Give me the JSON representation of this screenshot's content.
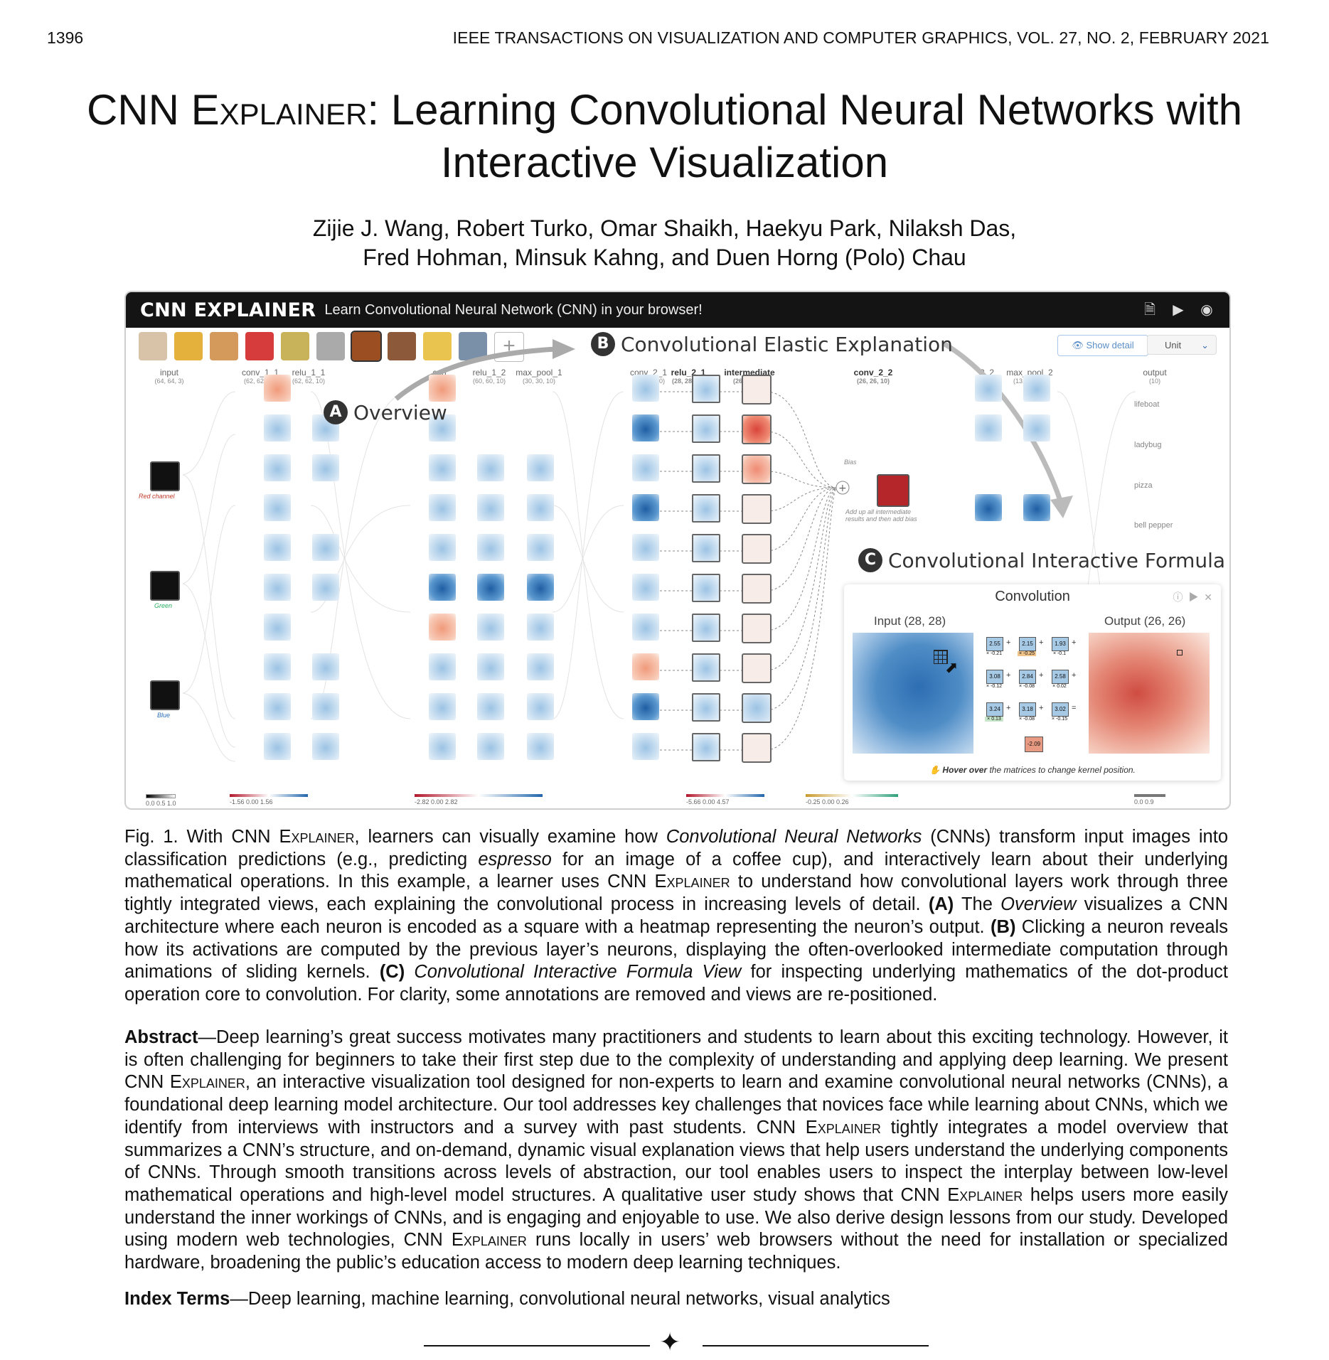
{
  "header": {
    "page_number": "1396",
    "journal": "IEEE TRANSACTIONS ON VISUALIZATION AND COMPUTER GRAPHICS, VOL. 27, NO. 2, FEBRUARY 2021"
  },
  "paper": {
    "title_part1": "CNN ",
    "title_sc": "Explainer",
    "title_part2": ": Learning Convolutional Neural Networks with",
    "title_line2": "Interactive Visualization",
    "authors_line1": "Zijie J. Wang, Robert Turko, Omar Shaikh, Haekyu Park, Nilaksh Das,",
    "authors_line2": "Fred Hohman, Minsuk Kahng, and Duen Horng (Polo) Chau"
  },
  "figure": {
    "app_title": "CNN EXPLAINER",
    "app_subtitle": "Learn Convolutional Neural Network (CNN) in your browser!",
    "add_label": "+",
    "show_detail": "Show detail",
    "unit_label": "Unit",
    "callout_a": {
      "badge": "A",
      "text": "Overview"
    },
    "callout_b": {
      "badge": "B",
      "text": "Convolutional Elastic Explanation"
    },
    "callout_c": {
      "badge": "C",
      "text": "Convolutional Interactive Formula"
    },
    "layers": [
      {
        "name": "input",
        "dims": "(64, 64, 3)"
      },
      {
        "name": "conv_1_1",
        "dims": "(62, 62, 10)"
      },
      {
        "name": "relu_1_1",
        "dims": "(62, 62, 10)"
      },
      {
        "name": "con",
        "dims": "0, 10)"
      },
      {
        "name": "relu_1_2",
        "dims": "(60, 60, 10)"
      },
      {
        "name": "max_pool_1",
        "dims": "(30, 30, 10)"
      },
      {
        "name": "conv_2_1",
        "dims": "(28, 28, 10)"
      },
      {
        "name": "relu_2_1",
        "dims": "(28, 28, 10)"
      },
      {
        "name": "intermediate",
        "dims": "(26, 26, 10)"
      },
      {
        "name": "conv_2_2",
        "dims": "(26, 26, 10)"
      },
      {
        "name": "2_2",
        "dims": "10)"
      },
      {
        "name": "max_pool_2",
        "dims": "(13, 13, 10)"
      },
      {
        "name": "output",
        "dims": "(10)"
      }
    ],
    "channels": [
      "Red channel",
      "Green",
      "Blue"
    ],
    "outputs": [
      "lifeboat",
      "ladybug",
      "pizza",
      "bell pepper"
    ],
    "bias_label": "Bias",
    "bias_note": "Add up all intermediate results and then add bias",
    "formula": {
      "title": "Convolution",
      "input_label": "Input (28, 28)",
      "output_label": "Output (26, 26)",
      "values": [
        "2.55",
        "2.15",
        "1.93",
        "3.08",
        "2.84",
        "2.58",
        "3.24",
        "3.18",
        "3.02"
      ],
      "weights": [
        "× -0.21",
        "× -0.25",
        "× -0.1",
        "× -0.12",
        "× -0.08",
        "× 0.02",
        "× 0.13",
        "× -0.08",
        "× -0.15"
      ],
      "result": "-2.09",
      "hover_bold": "Hover over",
      "hover_rest": " the matrices to change kernel position."
    },
    "legends": [
      {
        "ticks": "0.0  0.5  1.0"
      },
      {
        "ticks": "-1.56        0.00        1.56"
      },
      {
        "ticks": "-2.82                0.00                2.82"
      },
      {
        "ticks": "-5.66          0.00      4.57"
      },
      {
        "ticks": "-0.25          0.00          0.26"
      },
      {
        "ticks": "0.0        0.9"
      }
    ]
  },
  "caption": {
    "lead": "Fig. 1. With CNN ",
    "sc": "Explainer",
    "p1": ", learners can visually examine how ",
    "i1": "Convolutional Neural Networks",
    "p2": " (CNNs) transform input images into classification predictions (e.g., predicting ",
    "i2": "espresso",
    "p3": " for an image of a coffee cup), and interactively learn about their underlying mathematical operations. In this example, a learner uses CNN ",
    "sc2": "Explainer",
    "p4": " to understand how convolutional layers work through three tightly integrated views, each explaining the convolutional process in increasing levels of detail. ",
    "b1": "(A)",
    "p5": " The ",
    "i3": "Overview",
    "p6": " visualizes a CNN architecture where each neuron is encoded as a square with a heatmap representing the neuron’s output. ",
    "b2": "(B)",
    "p7": " Clicking a neuron reveals how its activations are computed by the previous layer’s neurons, displaying the often-overlooked intermediate computation through animations of sliding kernels. ",
    "b3": "(C)",
    "i4": " Convolutional Interactive Formula View",
    "p8": " for inspecting underlying mathematics of the dot-product operation core to convolution. For clarity, some annotations are removed and views are re-positioned."
  },
  "abstract": {
    "label": "Abstract",
    "t1": "—Deep learning’s great success motivates many practitioners and students to learn about this exciting technology. However, it is often challenging for beginners to take their first step due to the complexity of understanding and applying deep learning. We present CNN ",
    "sc1": "Explainer",
    "t2": ", an interactive visualization tool designed for non-experts to learn and examine convolutional neural networks (CNNs), a foundational deep learning model architecture. Our tool addresses key challenges that novices face while learning about CNNs, which we identify from interviews with instructors and a survey with past students. CNN ",
    "sc2": "Explainer",
    "t3": " tightly integrates a model overview that summarizes a CNN’s structure, and on-demand, dynamic visual explanation views that help users understand the underlying components of CNNs. Through smooth transitions across levels of abstraction, our tool enables users to inspect the interplay between low-level mathematical operations and high-level model structures. A qualitative user study shows that CNN ",
    "sc3": "Explainer",
    "t4": " helps users more easily understand the inner workings of CNNs, and is engaging and enjoyable to use. We also derive design lessons from our study. Developed using modern web technologies, CNN ",
    "sc4": "Explainer",
    "t5": " runs locally in users’ web browsers without the need for installation or specialized hardware, broadening the public’s education access to modern deep learning techniques."
  },
  "index_terms": {
    "label": "Index Terms",
    "text": "—Deep learning, machine learning, convolutional neural networks, visual analytics"
  },
  "colors": {
    "blue_heat": "#3a7dbf",
    "red_heat": "#d9574a",
    "appbar": "#141414"
  }
}
